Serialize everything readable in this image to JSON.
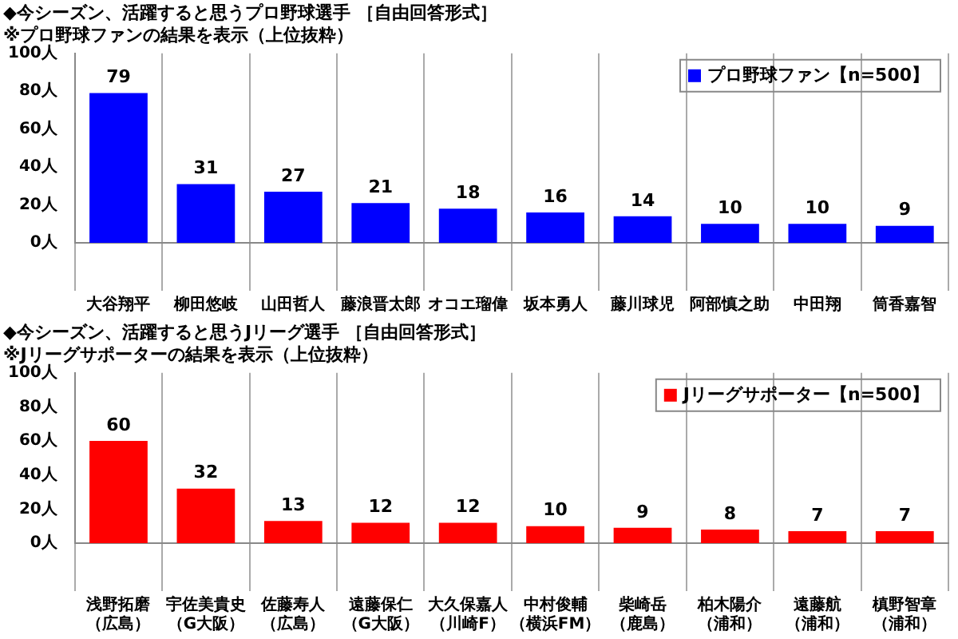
{
  "chart_data": [
    {
      "type": "bar",
      "title": "◆今シーズン、活躍すると思うプロ野球選手 ［自由回答形式］",
      "subtitle": "※プロ野球ファンの結果を表示（上位抜粋）",
      "categories": [
        "大谷翔平",
        "柳田悠岐",
        "山田哲人",
        "藤浪晋太郎",
        "オコエ瑠偉",
        "坂本勇人",
        "藤川球児",
        "阿部慎之助",
        "中田翔",
        "筒香嘉智"
      ],
      "series": [
        {
          "name": "プロ野球ファン【n=500】",
          "color": "#0000ff",
          "values": [
            79,
            31,
            27,
            21,
            18,
            16,
            14,
            10,
            10,
            9
          ]
        }
      ],
      "ylim": [
        0,
        100
      ],
      "yticks": [
        {
          "value": 0,
          "label": "0人"
        },
        {
          "value": 20,
          "label": "20人"
        },
        {
          "value": 40,
          "label": "40人"
        },
        {
          "value": 60,
          "label": "60人"
        },
        {
          "value": 80,
          "label": "80人"
        },
        {
          "value": 100,
          "label": "100人"
        }
      ],
      "grid": "x",
      "legend": "top right",
      "data_labels": true
    },
    {
      "type": "bar",
      "title": "◆今シーズン、活躍すると思うJリーグ選手 ［自由回答形式］",
      "subtitle": "※Jリーグサポーターの結果を表示（上位抜粋）",
      "categories": [
        "浅野拓磨（広島）",
        "宇佐美貴史（G大阪）",
        "佐藤寿人（広島）",
        "遠藤保仁（G大阪）",
        "大久保嘉人（川崎F）",
        "中村俊輔（横浜FM）",
        "柴崎岳（鹿島）",
        "柏木陽介（浦和）",
        "遠藤航（浦和）",
        "槙野智章（浦和）"
      ],
      "series": [
        {
          "name": "Jリーグサポーター【n=500】",
          "color": "#ff0000",
          "values": [
            60,
            32,
            13,
            12,
            12,
            10,
            9,
            8,
            7,
            7
          ]
        }
      ],
      "ylim": [
        0,
        100
      ],
      "yticks": [
        {
          "value": 0,
          "label": "0人"
        },
        {
          "value": 20,
          "label": "20人"
        },
        {
          "value": 40,
          "label": "40人"
        },
        {
          "value": 60,
          "label": "60人"
        },
        {
          "value": 80,
          "label": "80人"
        },
        {
          "value": 100,
          "label": "100人"
        }
      ],
      "grid": "x",
      "legend": "top right",
      "data_labels": true
    }
  ]
}
